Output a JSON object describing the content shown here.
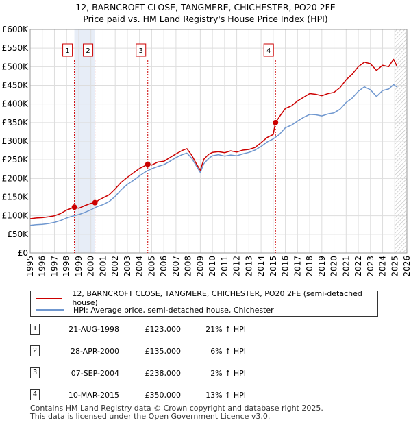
{
  "title_line1": "12, BARNCROFT CLOSE, TANGMERE, CHICHESTER, PO20 2FE",
  "title_line2": "Price paid vs. HM Land Registry's House Price Index (HPI)",
  "chart_data": {
    "type": "line",
    "ylim": [
      0,
      600000
    ],
    "xlim": [
      1995,
      2026
    ],
    "yticks": [
      0,
      50000,
      100000,
      150000,
      200000,
      250000,
      300000,
      350000,
      400000,
      450000,
      500000,
      550000,
      600000
    ],
    "ytick_labels": [
      "£0",
      "£50K",
      "£100K",
      "£150K",
      "£200K",
      "£250K",
      "£300K",
      "£350K",
      "£400K",
      "£450K",
      "£500K",
      "£550K",
      "£600K"
    ],
    "xticks": [
      1995,
      1996,
      1997,
      1998,
      1999,
      2000,
      2001,
      2002,
      2003,
      2004,
      2005,
      2006,
      2007,
      2008,
      2009,
      2010,
      2011,
      2012,
      2013,
      2014,
      2015,
      2016,
      2017,
      2018,
      2019,
      2020,
      2021,
      2022,
      2023,
      2024,
      2025,
      2026
    ],
    "xtick_labels": [
      "1995",
      "1996",
      "1997",
      "1998",
      "1999",
      "2000",
      "2001",
      "2002",
      "2003",
      "2004",
      "2005",
      "2006",
      "2007",
      "2008",
      "2009",
      "2010",
      "2011",
      "2012",
      "2013",
      "2014",
      "2015",
      "2016",
      "2017",
      "2018",
      "2019",
      "2020",
      "2021",
      "2022",
      "2023",
      "2024",
      "2025",
      "2026"
    ],
    "grid": true,
    "series": [
      {
        "name": "12, BARNCROFT CLOSE, TANGMERE, CHICHESTER, PO20 2FE (semi-detached house)",
        "color": "#cc0000",
        "x": [
          1995.0,
          1995.5,
          1996.0,
          1996.5,
          1997.0,
          1997.5,
          1998.0,
          1998.64,
          1999.0,
          1999.5,
          2000.0,
          2000.33,
          2000.7,
          2001.0,
          2001.5,
          2002.0,
          2002.5,
          2003.0,
          2003.5,
          2004.0,
          2004.68,
          2005.0,
          2005.5,
          2006.0,
          2006.5,
          2007.0,
          2007.5,
          2007.9,
          2008.3,
          2008.7,
          2009.0,
          2009.3,
          2009.7,
          2010.0,
          2010.5,
          2011.0,
          2011.5,
          2012.0,
          2012.5,
          2013.0,
          2013.5,
          2014.0,
          2014.5,
          2015.0,
          2015.19,
          2015.6,
          2016.0,
          2016.5,
          2017.0,
          2017.5,
          2018.0,
          2018.5,
          2019.0,
          2019.5,
          2020.0,
          2020.5,
          2021.0,
          2021.5,
          2022.0,
          2022.5,
          2023.0,
          2023.5,
          2024.0,
          2024.5,
          2024.9,
          2025.2
        ],
        "values": [
          92000,
          94000,
          95000,
          97000,
          100000,
          106000,
          115000,
          123000,
          120000,
          127000,
          133000,
          135000,
          143000,
          148000,
          156000,
          172000,
          190000,
          203000,
          215000,
          227000,
          238000,
          236000,
          244000,
          246000,
          256000,
          266000,
          275000,
          280000,
          262000,
          238000,
          222000,
          252000,
          265000,
          270000,
          272000,
          269000,
          274000,
          271000,
          276000,
          278000,
          283000,
          296000,
          310000,
          318000,
          350000,
          370000,
          388000,
          395000,
          408000,
          418000,
          428000,
          426000,
          422000,
          428000,
          431000,
          444000,
          465000,
          480000,
          500000,
          512000,
          508000,
          490000,
          504000,
          500000,
          520000,
          500000
        ]
      },
      {
        "name": "HPI: Average price, semi-detached house, Chichester",
        "color": "#6f97cf",
        "x": [
          1995.0,
          1995.5,
          1996.0,
          1996.5,
          1997.0,
          1997.5,
          1998.0,
          1998.5,
          1999.0,
          1999.5,
          2000.0,
          2000.5,
          2001.0,
          2001.5,
          2002.0,
          2002.5,
          2003.0,
          2003.5,
          2004.0,
          2004.5,
          2005.0,
          2005.5,
          2006.0,
          2006.5,
          2007.0,
          2007.5,
          2007.9,
          2008.3,
          2008.7,
          2009.0,
          2009.3,
          2009.7,
          2010.0,
          2010.5,
          2011.0,
          2011.5,
          2012.0,
          2012.5,
          2013.0,
          2013.5,
          2014.0,
          2014.5,
          2015.0,
          2015.5,
          2016.0,
          2016.5,
          2017.0,
          2017.5,
          2018.0,
          2018.5,
          2019.0,
          2019.5,
          2020.0,
          2020.5,
          2021.0,
          2021.5,
          2022.0,
          2022.5,
          2023.0,
          2023.5,
          2024.0,
          2024.5,
          2024.9,
          2025.2
        ],
        "values": [
          74000,
          76000,
          77000,
          79000,
          82000,
          87000,
          94000,
          99000,
          103000,
          109000,
          116000,
          124000,
          130000,
          138000,
          152000,
          170000,
          184000,
          195000,
          207000,
          218000,
          226000,
          232000,
          237000,
          246000,
          256000,
          264000,
          268000,
          254000,
          232000,
          216000,
          240000,
          254000,
          261000,
          264000,
          260000,
          263000,
          261000,
          266000,
          270000,
          276000,
          286000,
          298000,
          306000,
          318000,
          336000,
          343000,
          354000,
          364000,
          372000,
          371000,
          368000,
          373000,
          376000,
          386000,
          404000,
          416000,
          434000,
          446000,
          438000,
          420000,
          436000,
          440000,
          452000,
          445000
        ]
      }
    ],
    "sales": [
      {
        "num": "1",
        "x": 1998.64,
        "price": 123000
      },
      {
        "num": "2",
        "x": 2000.33,
        "price": 135000
      },
      {
        "num": "3",
        "x": 2004.68,
        "price": 238000
      },
      {
        "num": "4",
        "x": 2015.19,
        "price": 350000
      }
    ],
    "hatch_from": 2025.0
  },
  "legend": {
    "property": "12, BARNCROFT CLOSE, TANGMERE, CHICHESTER, PO20 2FE (semi-detached house)",
    "hpi": "HPI: Average price, semi-detached house, Chichester",
    "property_color": "#cc0000",
    "hpi_color": "#6f97cf"
  },
  "sales_table": [
    {
      "num": "1",
      "date": "21-AUG-1998",
      "price": "£123,000",
      "hpi": "21% ↑ HPI"
    },
    {
      "num": "2",
      "date": "28-APR-2000",
      "price": "£135,000",
      "hpi": "6% ↑ HPI"
    },
    {
      "num": "3",
      "date": "07-SEP-2004",
      "price": "£238,000",
      "hpi": "2% ↑ HPI"
    },
    {
      "num": "4",
      "date": "10-MAR-2015",
      "price": "£350,000",
      "hpi": "13% ↑ HPI"
    }
  ],
  "footer_line1": "Contains HM Land Registry data © Crown copyright and database right 2025.",
  "footer_line2": "This data is licensed under the Open Government Licence v3.0."
}
